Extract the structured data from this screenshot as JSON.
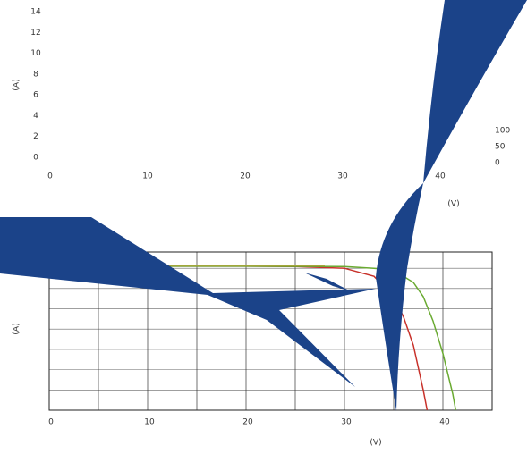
{
  "chart_data": [
    {
      "type": "axes",
      "y_label": "(A)",
      "x_label": "(V)",
      "xlim": [
        0,
        40
      ],
      "xticks": [
        0,
        10,
        20,
        30,
        40
      ],
      "ylim": [
        0,
        14
      ],
      "yticks": [
        0,
        2,
        4,
        6,
        8,
        10,
        12,
        14
      ],
      "y2lim": [
        0,
        100
      ],
      "y2ticks": [
        0,
        50,
        100
      ]
    },
    {
      "type": "line",
      "y_label": "(A)",
      "x_label": "(V)",
      "xlim": [
        0,
        45
      ],
      "xticks": [
        0,
        10,
        20,
        30,
        40
      ],
      "ylim": [
        0,
        7.8
      ],
      "grid_y": [
        0,
        1,
        2,
        3,
        4,
        5,
        6,
        7
      ],
      "grid_x": [
        5,
        15,
        25,
        35,
        45
      ],
      "series": [
        {
          "color": "#c8322b",
          "x": [
            0,
            10,
            20,
            25,
            30,
            33,
            35,
            36,
            37,
            38,
            38.4
          ],
          "values": [
            7.1,
            7.1,
            7.1,
            7.08,
            7.0,
            6.6,
            5.6,
            4.6,
            3.2,
            1.0,
            0
          ]
        },
        {
          "color": "#6aaa32",
          "x": [
            0,
            10,
            20,
            30,
            33,
            35,
            37,
            38,
            39,
            40,
            41,
            41.3
          ],
          "values": [
            7.1,
            7.1,
            7.1,
            7.08,
            7.0,
            6.9,
            6.3,
            5.6,
            4.4,
            2.8,
            0.8,
            0
          ]
        },
        {
          "color": "#d9a441",
          "x": [
            10,
            20,
            28
          ],
          "values": [
            7.15,
            7.15,
            7.15
          ]
        }
      ]
    }
  ]
}
